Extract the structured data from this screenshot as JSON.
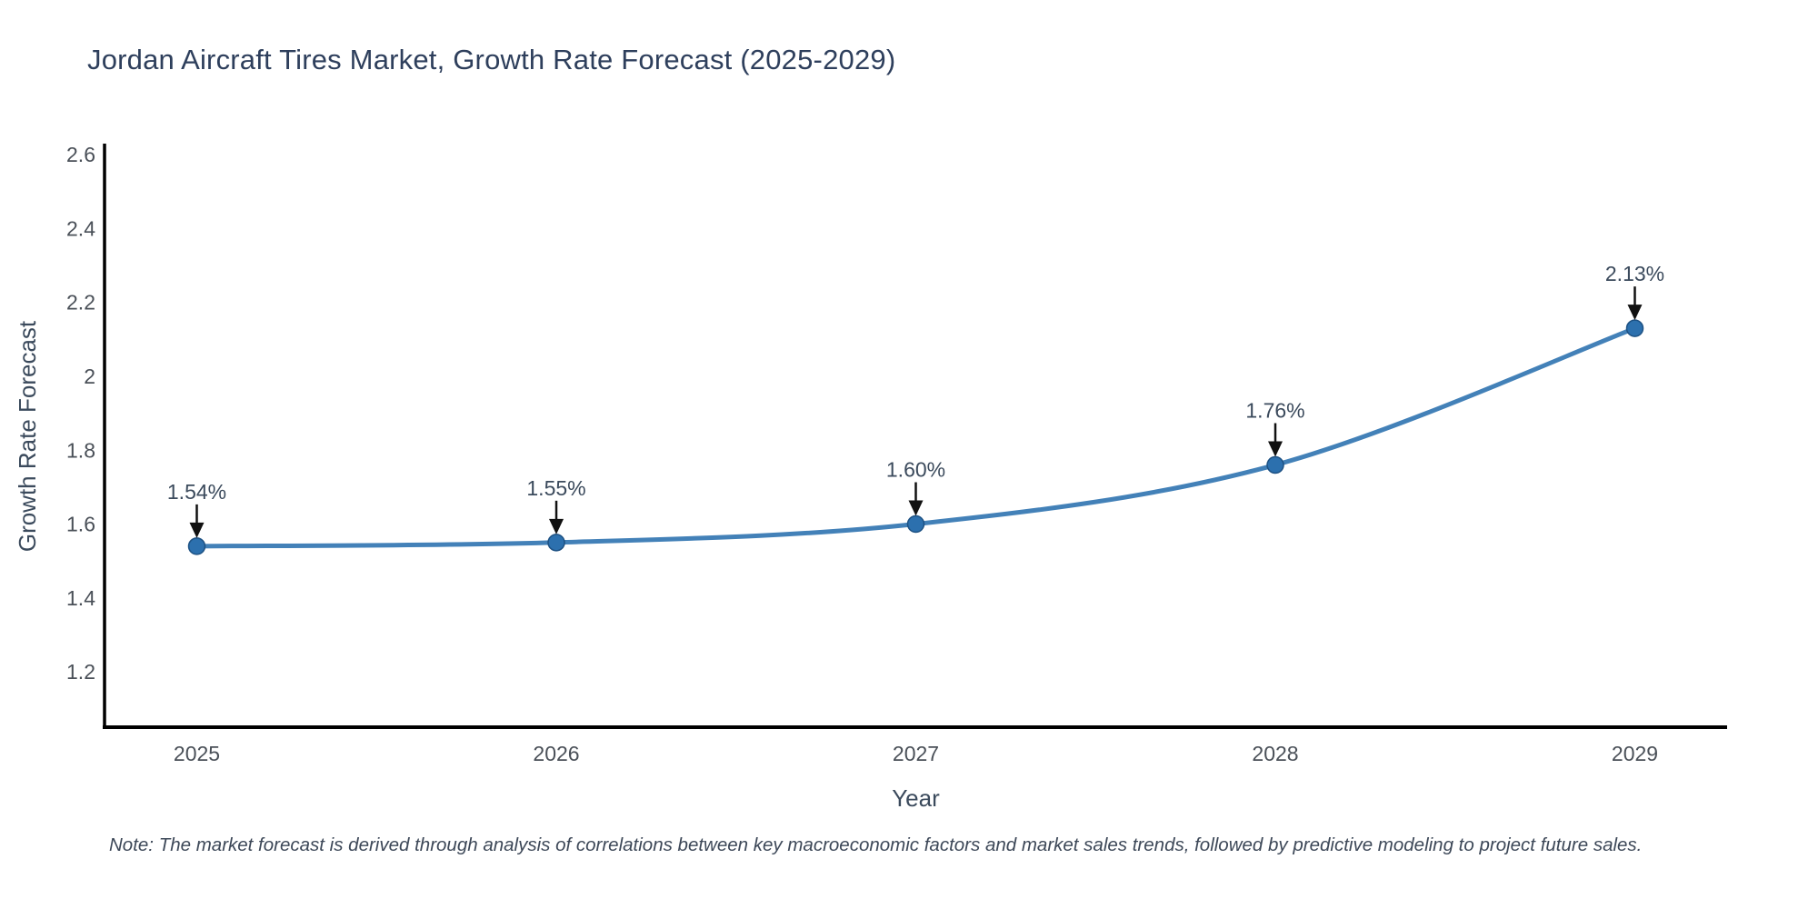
{
  "title": "Jordan Aircraft Tires Market, Growth Rate Forecast (2025-2029)",
  "note": "Note: The market forecast is derived through analysis of correlations between key macroeconomic factors and market sales trends, followed by predictive modeling to project future sales.",
  "chart_data": {
    "type": "line",
    "title": "Jordan Aircraft Tires Market, Growth Rate Forecast (2025-2029)",
    "xlabel": "Year",
    "ylabel": "Growth Rate Forecast",
    "categories": [
      "2025",
      "2026",
      "2027",
      "2028",
      "2029"
    ],
    "series": [
      {
        "name": "Growth Rate Forecast",
        "values": [
          1.54,
          1.55,
          1.6,
          1.76,
          2.13
        ],
        "point_labels": [
          "1.54%",
          "1.55%",
          "1.60%",
          "1.76%",
          "2.13%"
        ]
      }
    ],
    "ylim": [
      1.05,
      2.63
    ],
    "yticks": [
      1.2,
      1.4,
      1.6,
      1.8,
      2.0,
      2.2,
      2.4,
      2.6
    ],
    "ytick_labels": [
      "1.2",
      "1.4",
      "1.6",
      "1.8",
      "2",
      "2.2",
      "2.4",
      "2.6"
    ],
    "grid": false,
    "legend_position": "none",
    "line_shape": "spline",
    "annotations_have_arrows": true,
    "colors": {
      "line": "#4381b8",
      "marker_fill": "#2c70ae",
      "marker_edge": "#1d5183",
      "axis_line": "#000000",
      "title_text": "#2e3f5c",
      "tick_text": "#4a5058",
      "axis_title_text": "#3b4a5c",
      "annotation_text": "#3b4a5c",
      "arrow": "#111111",
      "note_text": "#3d4858",
      "background": "#ffffff"
    }
  }
}
